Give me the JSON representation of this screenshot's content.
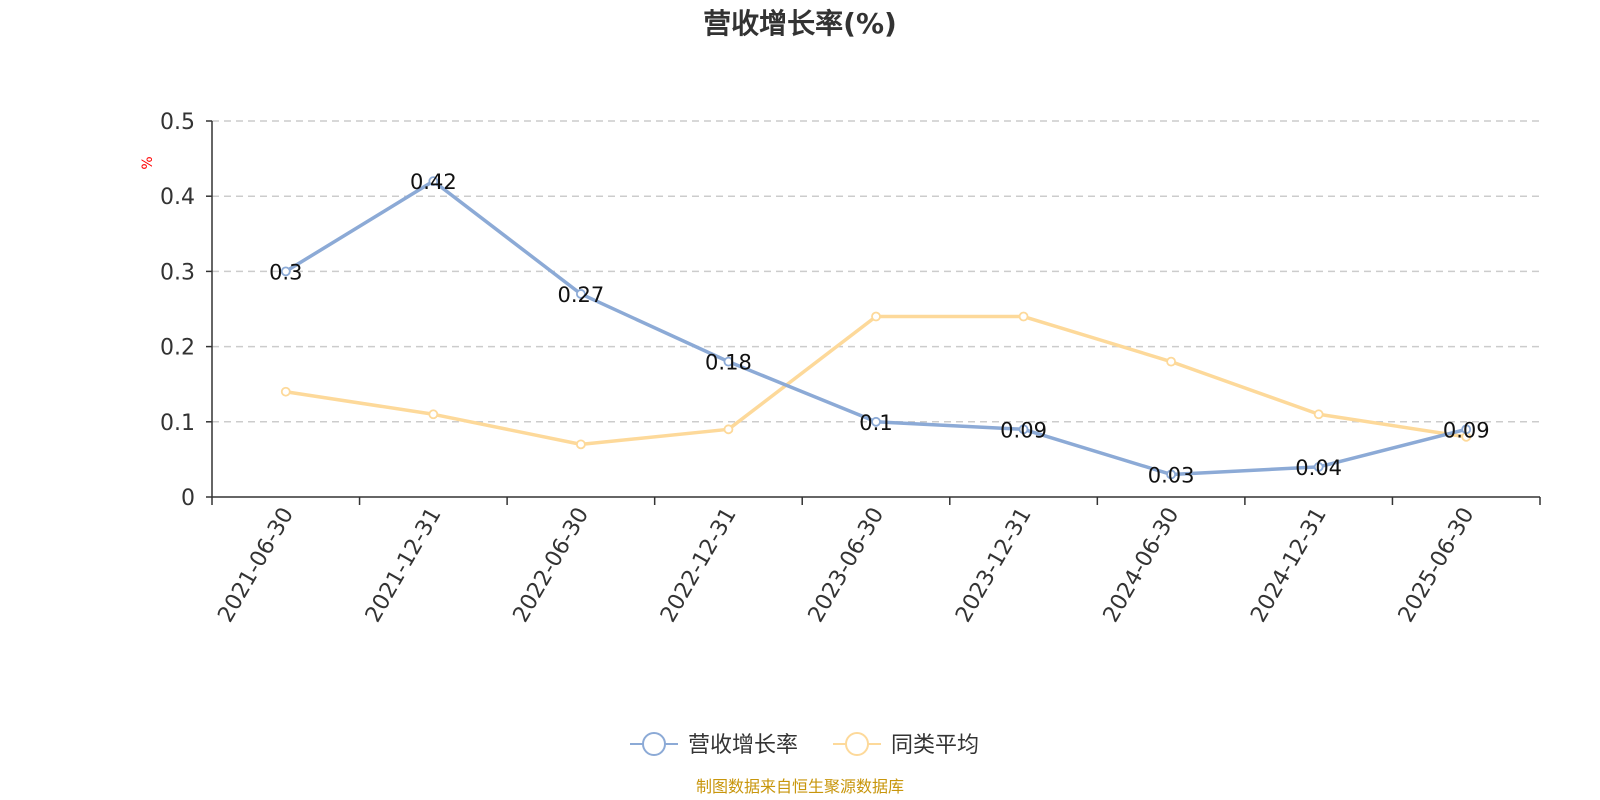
{
  "title": "营收增长率(%)",
  "source": "制图数据来自恒生聚源数据库",
  "colors": {
    "series_0": "#8caad6",
    "series_1": "#fdd99a",
    "grid": "#cccccc",
    "axis": "#333333",
    "unit": "#ff0000",
    "source": "#c8960c"
  },
  "chart_data": {
    "type": "line",
    "title": "营收增长率(%)",
    "ylabel": "%",
    "xlabel": "",
    "ylim": [
      0,
      0.5
    ],
    "yticks": [
      0,
      0.1,
      0.2,
      0.3,
      0.4,
      0.5
    ],
    "ytick_labels": [
      "0",
      "0.1",
      "0.2",
      "0.3",
      "0.4",
      "0.5"
    ],
    "grid": true,
    "legend_position": "bottom-center",
    "categories": [
      "2021-06-30",
      "2021-12-31",
      "2022-06-30",
      "2022-12-31",
      "2023-06-30",
      "2023-12-31",
      "2024-06-30",
      "2024-12-31",
      "2025-06-30"
    ],
    "series": [
      {
        "name": "营收增长率",
        "values": [
          0.3,
          0.42,
          0.27,
          0.18,
          0.1,
          0.09,
          0.03,
          0.04,
          0.09
        ],
        "labels": [
          "0.3",
          "0.42",
          "0.27",
          "0.18",
          "0.1",
          "0.09",
          "0.03",
          "0.04",
          "0.09"
        ],
        "show_labels": true
      },
      {
        "name": "同类平均",
        "values": [
          0.14,
          0.11,
          0.07,
          0.09,
          0.24,
          0.24,
          0.18,
          0.11,
          0.08
        ],
        "show_labels": false
      }
    ]
  }
}
